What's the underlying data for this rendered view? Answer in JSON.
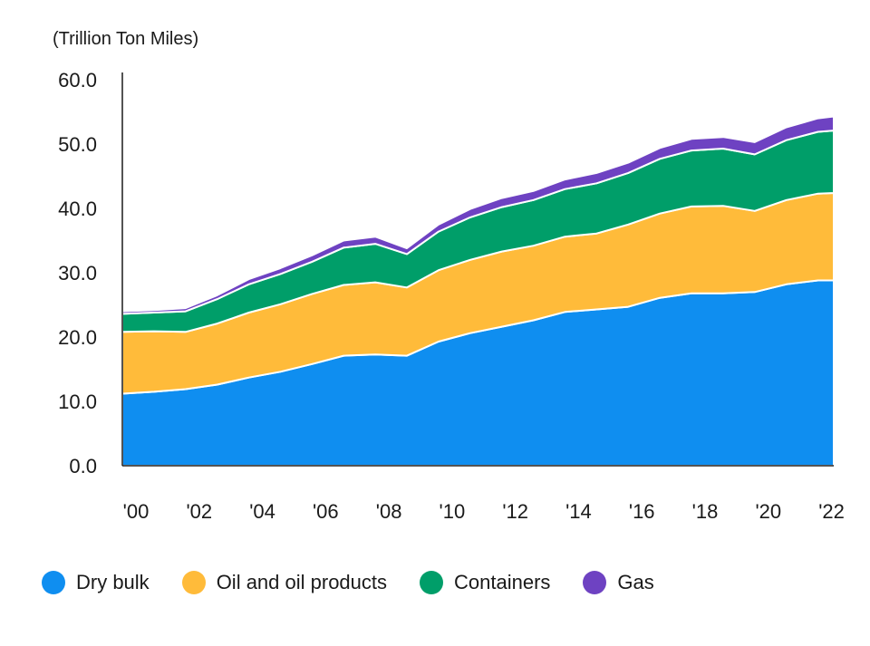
{
  "chart_data": {
    "type": "area",
    "stacked": true,
    "ylabel": "(Trillion Ton Miles)",
    "ylim": [
      0,
      60
    ],
    "yticks": [
      "0.0",
      "10.0",
      "20.0",
      "30.0",
      "40.0",
      "50.0",
      "60.0"
    ],
    "xlim": [
      2000,
      2022.5
    ],
    "xticks": [
      {
        "year": 2000,
        "label": "'00"
      },
      {
        "year": 2002,
        "label": "'02"
      },
      {
        "year": 2004,
        "label": "'04"
      },
      {
        "year": 2006,
        "label": "'06"
      },
      {
        "year": 2008,
        "label": "'08"
      },
      {
        "year": 2010,
        "label": "'10"
      },
      {
        "year": 2012,
        "label": "'12"
      },
      {
        "year": 2014,
        "label": "'14"
      },
      {
        "year": 2016,
        "label": "'16"
      },
      {
        "year": 2018,
        "label": "'18"
      },
      {
        "year": 2020,
        "label": "'20"
      },
      {
        "year": 2022,
        "label": "'22"
      }
    ],
    "x": [
      2000,
      2001,
      2002,
      2003,
      2004,
      2005,
      2006,
      2007,
      2008,
      2009,
      2010,
      2011,
      2012,
      2013,
      2014,
      2015,
      2016,
      2017,
      2018,
      2019,
      2020,
      2021,
      2022,
      2022.5
    ],
    "series": [
      {
        "name": "Dry bulk",
        "color": "#0f8ef0",
        "values": [
          11.2,
          11.5,
          11.9,
          12.6,
          13.7,
          14.6,
          15.8,
          17.1,
          17.3,
          17.1,
          19.3,
          20.6,
          21.6,
          22.6,
          23.9,
          24.3,
          24.7,
          26.1,
          26.8,
          26.8,
          27.0,
          28.2,
          28.8,
          28.8
        ]
      },
      {
        "name": "Oil and oil products",
        "color": "#ffbb3a",
        "values": [
          9.6,
          9.4,
          8.9,
          9.5,
          10.1,
          10.5,
          10.9,
          11.0,
          11.2,
          10.6,
          11.1,
          11.4,
          11.7,
          11.6,
          11.7,
          11.8,
          12.8,
          13.1,
          13.5,
          13.6,
          12.6,
          13.1,
          13.5,
          13.6
        ]
      },
      {
        "name": "Containers",
        "color": "#009e69",
        "values": [
          2.8,
          2.9,
          3.2,
          3.8,
          4.4,
          4.7,
          5.0,
          5.8,
          6.0,
          5.2,
          6.0,
          6.6,
          6.9,
          7.1,
          7.4,
          7.8,
          8.0,
          8.5,
          8.7,
          8.9,
          8.8,
          9.3,
          9.6,
          9.7
        ]
      },
      {
        "name": "Gas",
        "color": "#6e42c2",
        "values": [
          0.4,
          0.4,
          0.5,
          0.6,
          0.8,
          0.9,
          1.0,
          1.1,
          1.1,
          0.9,
          1.1,
          1.3,
          1.4,
          1.4,
          1.5,
          1.6,
          1.6,
          1.7,
          1.8,
          1.8,
          1.9,
          2.0,
          2.1,
          2.2
        ]
      }
    ],
    "legend_position": "bottom",
    "grid": false
  }
}
